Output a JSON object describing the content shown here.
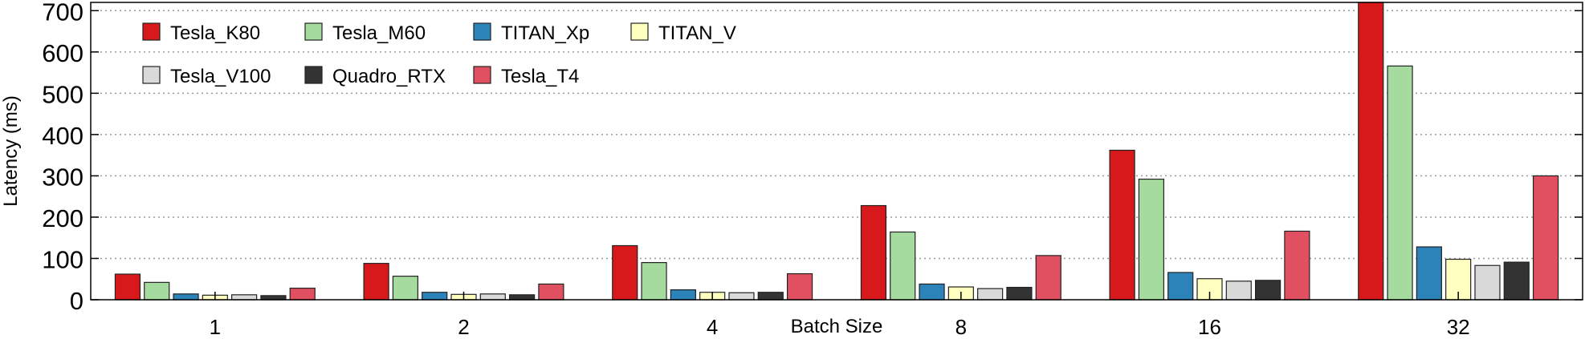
{
  "chart_data": {
    "type": "bar",
    "title": "",
    "xlabel": "Batch Size",
    "ylabel": "Latency (ms)",
    "ylim": [
      0,
      720
    ],
    "yticks": [
      0,
      100,
      200,
      300,
      400,
      500,
      600,
      700
    ],
    "grid": "horizontal dotted",
    "legend_position": "top-left",
    "categories": [
      "1",
      "2",
      "4",
      "8",
      "16",
      "32"
    ],
    "series": [
      {
        "name": "Tesla_K80",
        "color": "#d7191c",
        "values": [
          62,
          88,
          131,
          228,
          362,
          720
        ]
      },
      {
        "name": "Tesla_M60",
        "color": "#a6dba0",
        "values": [
          42,
          57,
          90,
          164,
          292,
          566
        ]
      },
      {
        "name": "TITAN_Xp",
        "color": "#2b83ba",
        "values": [
          14,
          18,
          24,
          38,
          66,
          128
        ]
      },
      {
        "name": "TITAN_V",
        "color": "#ffffbf",
        "values": [
          11,
          13,
          18,
          31,
          51,
          98
        ]
      },
      {
        "name": "Tesla_V100",
        "color": "#d9d9d9",
        "values": [
          12,
          14,
          17,
          27,
          45,
          83
        ]
      },
      {
        "name": "Quadro_RTX",
        "color": "#333333",
        "values": [
          10,
          12,
          18,
          30,
          47,
          91
        ]
      },
      {
        "name": "Tesla_T4",
        "color": "#e05060",
        "values": [
          28,
          38,
          63,
          107,
          166,
          300
        ]
      }
    ]
  }
}
